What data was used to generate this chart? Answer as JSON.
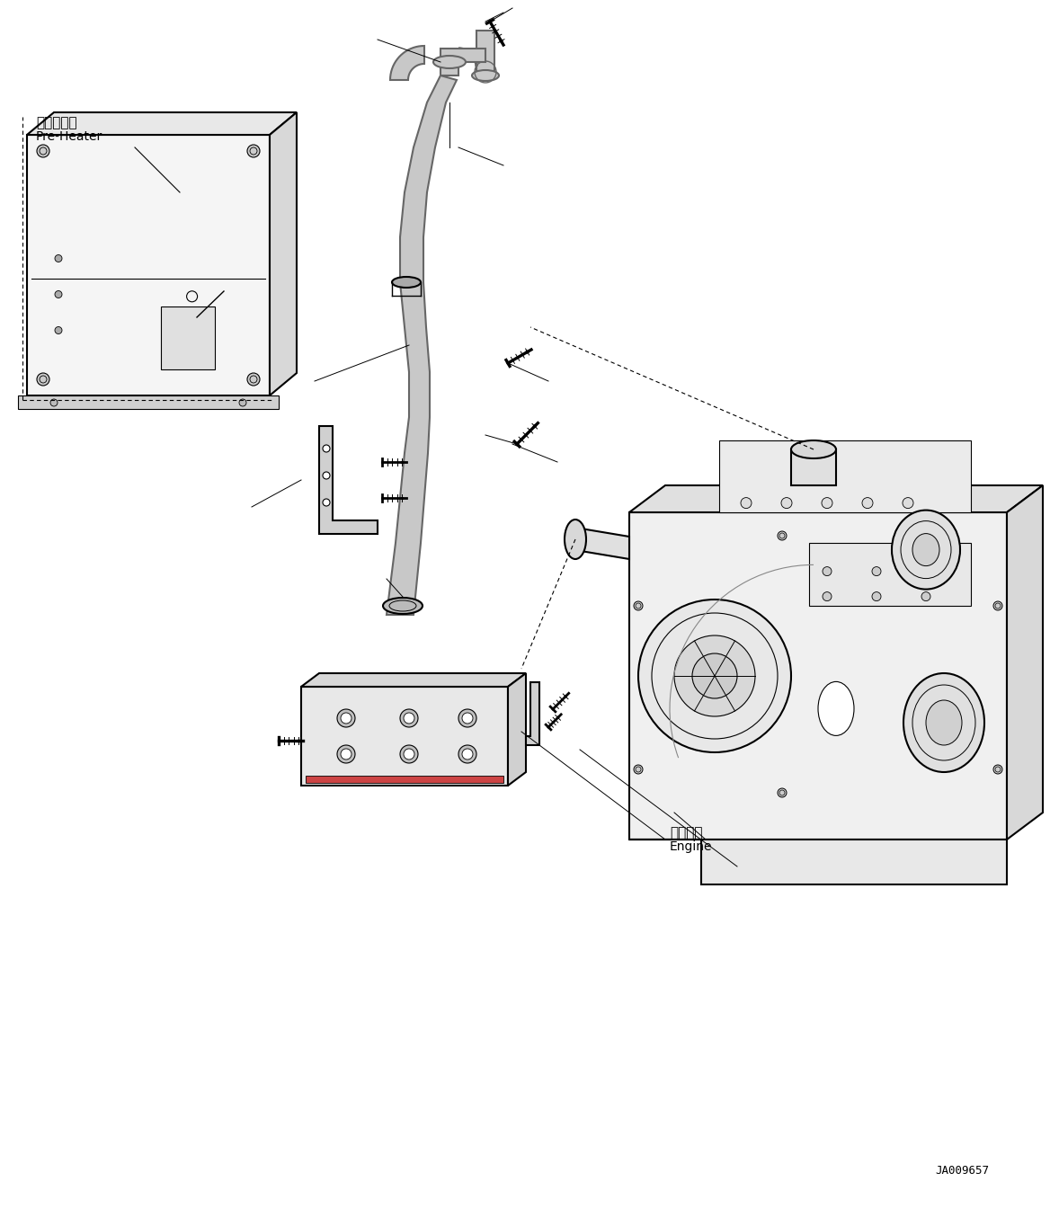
{
  "background_color": "#ffffff",
  "line_color": "#000000",
  "figure_width": 11.68,
  "figure_height": 13.64,
  "dpi": 100,
  "part_code": "JA009657",
  "label_preheater_jp": "プレヒータ",
  "label_preheater_en": "Pre-Heater",
  "label_engine_jp": "エンジン",
  "label_engine_en": "Engine",
  "gray_fill": "#c8c8c8",
  "light_gray": "#e0e0e0",
  "dark_gray": "#808080",
  "medium_gray": "#a0a0a0"
}
